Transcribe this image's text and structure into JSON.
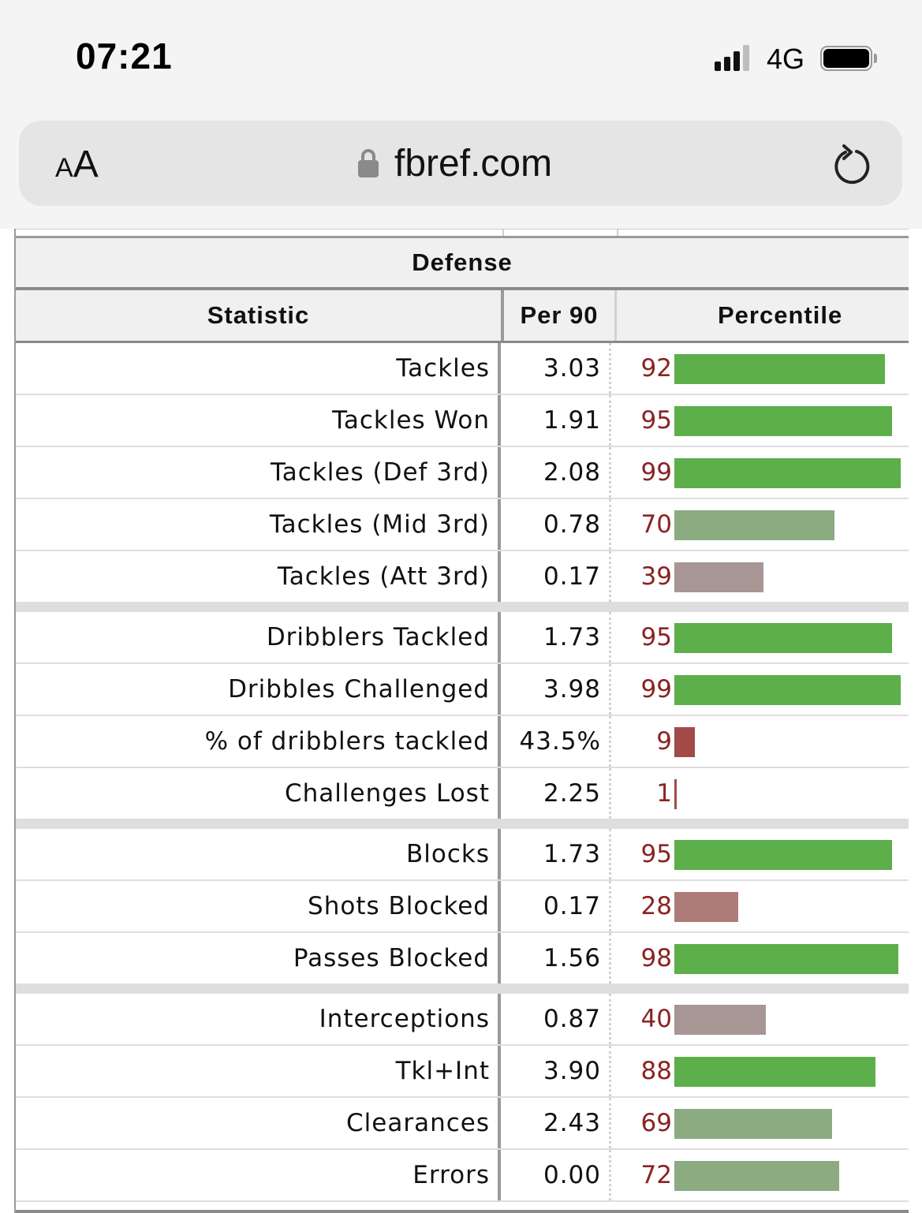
{
  "status_bar": {
    "time": "07:21",
    "network": "4G",
    "icons": [
      "signal-icon",
      "battery-icon"
    ]
  },
  "browser": {
    "text_size_small": "A",
    "text_size_large": "A",
    "url": "fbref.com",
    "icons": [
      "lock-icon",
      "reload-icon"
    ]
  },
  "table": {
    "caption": "Defense",
    "headers": [
      "Statistic",
      "Per 90",
      "Percentile"
    ],
    "colors": {
      "high": "#5caf4a",
      "upper_mid": "#8aac80",
      "lower_mid": "#a89694",
      "low": "#ad7b78",
      "very_low": "#a24a47"
    },
    "groups": [
      {
        "rows": [
          {
            "stat": "Tackles",
            "per90": "3.03",
            "percentile": 92
          },
          {
            "stat": "Tackles Won",
            "per90": "1.91",
            "percentile": 95
          },
          {
            "stat": "Tackles (Def 3rd)",
            "per90": "2.08",
            "percentile": 99
          },
          {
            "stat": "Tackles (Mid 3rd)",
            "per90": "0.78",
            "percentile": 70
          },
          {
            "stat": "Tackles (Att 3rd)",
            "per90": "0.17",
            "percentile": 39
          }
        ]
      },
      {
        "rows": [
          {
            "stat": "Dribblers Tackled",
            "per90": "1.73",
            "percentile": 95
          },
          {
            "stat": "Dribbles Challenged",
            "per90": "3.98",
            "percentile": 99
          },
          {
            "stat": "% of dribblers tackled",
            "per90": "43.5%",
            "percentile": 9
          },
          {
            "stat": "Challenges Lost",
            "per90": "2.25",
            "percentile": 1
          }
        ]
      },
      {
        "rows": [
          {
            "stat": "Blocks",
            "per90": "1.73",
            "percentile": 95
          },
          {
            "stat": "Shots Blocked",
            "per90": "0.17",
            "percentile": 28
          },
          {
            "stat": "Passes Blocked",
            "per90": "1.56",
            "percentile": 98
          }
        ]
      },
      {
        "rows": [
          {
            "stat": "Interceptions",
            "per90": "0.87",
            "percentile": 40
          },
          {
            "stat": "Tkl+Int",
            "per90": "3.90",
            "percentile": 88
          },
          {
            "stat": "Clearances",
            "per90": "2.43",
            "percentile": 69
          },
          {
            "stat": "Errors",
            "per90": "0.00",
            "percentile": 72
          }
        ]
      }
    ]
  }
}
